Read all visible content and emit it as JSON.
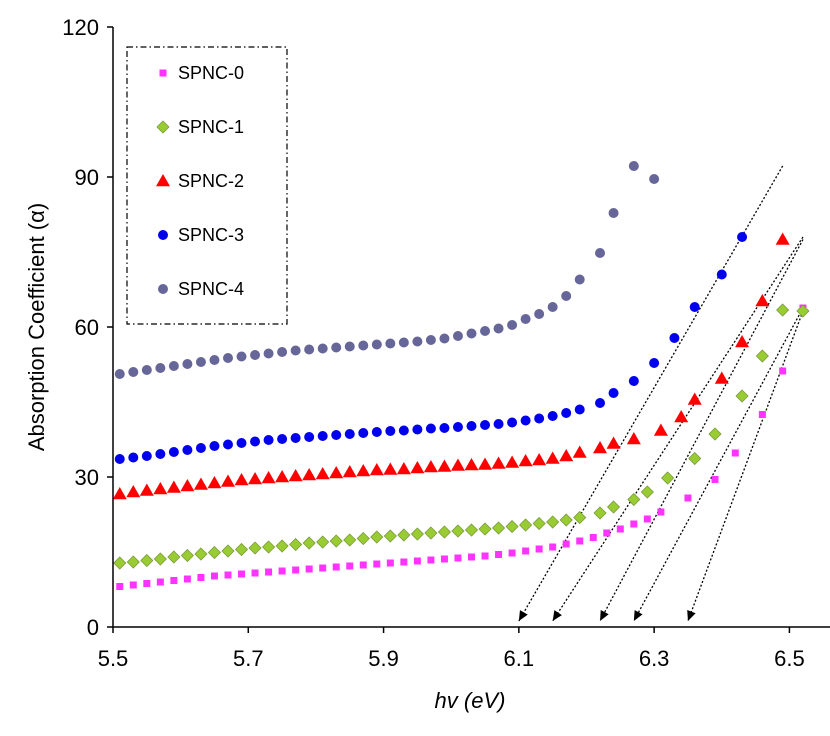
{
  "chart_data": {
    "type": "scatter",
    "xlabel": "hv (eV)",
    "ylabel": "Absorption Coefficient (α)",
    "xlim": [
      5.5,
      6.56
    ],
    "ylim": [
      0,
      120
    ],
    "x_ticks": [
      "5.5",
      "5.7",
      "5.9",
      "6.1",
      "6.3",
      "6.5"
    ],
    "y_ticks": [
      "0",
      "30",
      "60",
      "90",
      "120"
    ],
    "x_tick_values": [
      5.5,
      5.7,
      5.9,
      6.1,
      6.3,
      6.5
    ],
    "y_tick_values": [
      0,
      30,
      60,
      90,
      120
    ],
    "grid": false,
    "legend_position": "top-left",
    "series": [
      {
        "name": "SPNC-0",
        "marker": "square",
        "color": "#ff33ff",
        "points": [
          [
            5.51,
            8.1
          ],
          [
            5.53,
            8.4
          ],
          [
            5.55,
            8.7
          ],
          [
            5.57,
            9.0
          ],
          [
            5.59,
            9.3
          ],
          [
            5.61,
            9.6
          ],
          [
            5.63,
            9.9
          ],
          [
            5.65,
            10.2
          ],
          [
            5.67,
            10.4
          ],
          [
            5.69,
            10.6
          ],
          [
            5.71,
            10.8
          ],
          [
            5.73,
            11.0
          ],
          [
            5.75,
            11.2
          ],
          [
            5.77,
            11.4
          ],
          [
            5.79,
            11.6
          ],
          [
            5.81,
            11.8
          ],
          [
            5.83,
            12.0
          ],
          [
            5.85,
            12.2
          ],
          [
            5.87,
            12.4
          ],
          [
            5.89,
            12.6
          ],
          [
            5.91,
            12.8
          ],
          [
            5.93,
            13.0
          ],
          [
            5.95,
            13.2
          ],
          [
            5.97,
            13.4
          ],
          [
            5.99,
            13.6
          ],
          [
            6.01,
            13.8
          ],
          [
            6.03,
            14.0
          ],
          [
            6.05,
            14.2
          ],
          [
            6.07,
            14.5
          ],
          [
            6.09,
            14.8
          ],
          [
            6.11,
            15.2
          ],
          [
            6.13,
            15.6
          ],
          [
            6.15,
            16.0
          ],
          [
            6.17,
            16.6
          ],
          [
            6.19,
            17.2
          ],
          [
            6.21,
            17.9
          ],
          [
            6.23,
            18.8
          ],
          [
            6.25,
            19.6
          ],
          [
            6.27,
            20.6
          ],
          [
            6.29,
            21.6
          ],
          [
            6.31,
            23.0
          ],
          [
            6.35,
            25.8
          ],
          [
            6.39,
            29.5
          ],
          [
            6.42,
            34.8
          ],
          [
            6.46,
            42.5
          ],
          [
            6.49,
            51.2
          ],
          [
            6.52,
            63.8
          ]
        ]
      },
      {
        "name": "SPNC-1",
        "marker": "diamond",
        "color": "#99cc33",
        "points": [
          [
            5.51,
            12.8
          ],
          [
            5.53,
            13.0
          ],
          [
            5.55,
            13.3
          ],
          [
            5.57,
            13.6
          ],
          [
            5.59,
            14.0
          ],
          [
            5.61,
            14.3
          ],
          [
            5.63,
            14.6
          ],
          [
            5.65,
            14.9
          ],
          [
            5.67,
            15.2
          ],
          [
            5.69,
            15.5
          ],
          [
            5.71,
            15.8
          ],
          [
            5.73,
            16.0
          ],
          [
            5.75,
            16.2
          ],
          [
            5.77,
            16.5
          ],
          [
            5.79,
            16.8
          ],
          [
            5.81,
            17.0
          ],
          [
            5.83,
            17.2
          ],
          [
            5.85,
            17.4
          ],
          [
            5.87,
            17.7
          ],
          [
            5.89,
            18.0
          ],
          [
            5.91,
            18.2
          ],
          [
            5.93,
            18.4
          ],
          [
            5.95,
            18.6
          ],
          [
            5.97,
            18.8
          ],
          [
            5.99,
            19.0
          ],
          [
            6.01,
            19.2
          ],
          [
            6.03,
            19.4
          ],
          [
            6.05,
            19.6
          ],
          [
            6.07,
            19.8
          ],
          [
            6.09,
            20.1
          ],
          [
            6.11,
            20.4
          ],
          [
            6.13,
            20.7
          ],
          [
            6.15,
            21.0
          ],
          [
            6.17,
            21.4
          ],
          [
            6.19,
            21.9
          ],
          [
            6.22,
            22.8
          ],
          [
            6.24,
            24.0
          ],
          [
            6.27,
            25.5
          ],
          [
            6.29,
            27.0
          ],
          [
            6.32,
            29.8
          ],
          [
            6.36,
            33.7
          ],
          [
            6.39,
            38.6
          ],
          [
            6.43,
            46.2
          ],
          [
            6.46,
            54.2
          ],
          [
            6.49,
            63.4
          ],
          [
            6.52,
            63.2
          ]
        ]
      },
      {
        "name": "SPNC-2",
        "marker": "triangle",
        "color": "#ff0000",
        "points": [
          [
            5.51,
            26.6
          ],
          [
            5.53,
            27.0
          ],
          [
            5.55,
            27.3
          ],
          [
            5.57,
            27.6
          ],
          [
            5.59,
            27.9
          ],
          [
            5.61,
            28.2
          ],
          [
            5.63,
            28.5
          ],
          [
            5.65,
            28.8
          ],
          [
            5.67,
            29.1
          ],
          [
            5.69,
            29.4
          ],
          [
            5.71,
            29.6
          ],
          [
            5.73,
            29.8
          ],
          [
            5.75,
            30.0
          ],
          [
            5.77,
            30.2
          ],
          [
            5.79,
            30.4
          ],
          [
            5.81,
            30.6
          ],
          [
            5.83,
            30.8
          ],
          [
            5.85,
            31.0
          ],
          [
            5.87,
            31.2
          ],
          [
            5.89,
            31.4
          ],
          [
            5.91,
            31.5
          ],
          [
            5.93,
            31.6
          ],
          [
            5.95,
            31.8
          ],
          [
            5.97,
            32.0
          ],
          [
            5.99,
            32.1
          ],
          [
            6.01,
            32.3
          ],
          [
            6.03,
            32.4
          ],
          [
            6.05,
            32.5
          ],
          [
            6.07,
            32.7
          ],
          [
            6.09,
            32.9
          ],
          [
            6.11,
            33.2
          ],
          [
            6.13,
            33.4
          ],
          [
            6.15,
            33.7
          ],
          [
            6.17,
            34.2
          ],
          [
            6.19,
            34.9
          ],
          [
            6.22,
            35.8
          ],
          [
            6.24,
            36.7
          ],
          [
            6.27,
            37.6
          ],
          [
            6.31,
            39.3
          ],
          [
            6.34,
            42.0
          ],
          [
            6.36,
            45.5
          ],
          [
            6.4,
            49.7
          ],
          [
            6.43,
            57.0
          ],
          [
            6.46,
            65.2
          ],
          [
            6.49,
            77.5
          ]
        ]
      },
      {
        "name": "SPNC-3",
        "marker": "circle",
        "color": "#0000ee",
        "points": [
          [
            5.51,
            33.6
          ],
          [
            5.53,
            33.9
          ],
          [
            5.55,
            34.2
          ],
          [
            5.57,
            34.6
          ],
          [
            5.59,
            35.0
          ],
          [
            5.61,
            35.4
          ],
          [
            5.63,
            35.8
          ],
          [
            5.65,
            36.2
          ],
          [
            5.67,
            36.5
          ],
          [
            5.69,
            36.8
          ],
          [
            5.71,
            37.1
          ],
          [
            5.73,
            37.4
          ],
          [
            5.75,
            37.6
          ],
          [
            5.77,
            37.8
          ],
          [
            5.79,
            38.0
          ],
          [
            5.81,
            38.2
          ],
          [
            5.83,
            38.4
          ],
          [
            5.85,
            38.6
          ],
          [
            5.87,
            38.8
          ],
          [
            5.89,
            39.0
          ],
          [
            5.91,
            39.2
          ],
          [
            5.93,
            39.3
          ],
          [
            5.95,
            39.5
          ],
          [
            5.97,
            39.7
          ],
          [
            5.99,
            39.8
          ],
          [
            6.01,
            40.0
          ],
          [
            6.03,
            40.2
          ],
          [
            6.05,
            40.4
          ],
          [
            6.07,
            40.6
          ],
          [
            6.09,
            40.9
          ],
          [
            6.11,
            41.3
          ],
          [
            6.13,
            41.7
          ],
          [
            6.15,
            42.2
          ],
          [
            6.17,
            42.8
          ],
          [
            6.19,
            43.5
          ],
          [
            6.22,
            44.8
          ],
          [
            6.24,
            46.8
          ],
          [
            6.27,
            49.2
          ],
          [
            6.3,
            52.8
          ],
          [
            6.33,
            57.8
          ],
          [
            6.36,
            64.0
          ],
          [
            6.4,
            70.5
          ],
          [
            6.43,
            78.0
          ]
        ]
      },
      {
        "name": "SPNC-4",
        "marker": "circle",
        "color": "#666699",
        "points": [
          [
            5.51,
            50.6
          ],
          [
            5.53,
            51.0
          ],
          [
            5.55,
            51.4
          ],
          [
            5.57,
            51.8
          ],
          [
            5.59,
            52.2
          ],
          [
            5.61,
            52.6
          ],
          [
            5.63,
            53.0
          ],
          [
            5.65,
            53.4
          ],
          [
            5.67,
            53.8
          ],
          [
            5.69,
            54.1
          ],
          [
            5.71,
            54.4
          ],
          [
            5.73,
            54.7
          ],
          [
            5.75,
            55.0
          ],
          [
            5.77,
            55.3
          ],
          [
            5.79,
            55.5
          ],
          [
            5.81,
            55.7
          ],
          [
            5.83,
            55.9
          ],
          [
            5.85,
            56.1
          ],
          [
            5.87,
            56.3
          ],
          [
            5.89,
            56.5
          ],
          [
            5.91,
            56.7
          ],
          [
            5.93,
            56.9
          ],
          [
            5.95,
            57.1
          ],
          [
            5.97,
            57.4
          ],
          [
            5.99,
            57.7
          ],
          [
            6.01,
            58.2
          ],
          [
            6.03,
            58.7
          ],
          [
            6.05,
            59.2
          ],
          [
            6.07,
            59.7
          ],
          [
            6.09,
            60.4
          ],
          [
            6.11,
            61.6
          ],
          [
            6.13,
            62.6
          ],
          [
            6.15,
            64.0
          ],
          [
            6.17,
            66.2
          ],
          [
            6.19,
            69.5
          ],
          [
            6.22,
            74.8
          ],
          [
            6.24,
            82.8
          ],
          [
            6.27,
            92.2
          ],
          [
            6.3,
            89.6
          ]
        ]
      }
    ],
    "tangent_lines": [
      {
        "from": [
          6.49,
          92.2
        ],
        "to": [
          6.1,
          0
        ]
      },
      {
        "from": [
          6.52,
          78.0
        ],
        "to": [
          6.15,
          0
        ]
      },
      {
        "from": [
          6.52,
          77.5
        ],
        "to": [
          6.22,
          0
        ]
      },
      {
        "from": [
          6.52,
          63.8
        ],
        "to": [
          6.27,
          0
        ]
      },
      {
        "from": [
          6.52,
          63.2
        ],
        "to": [
          6.35,
          0
        ]
      }
    ]
  }
}
